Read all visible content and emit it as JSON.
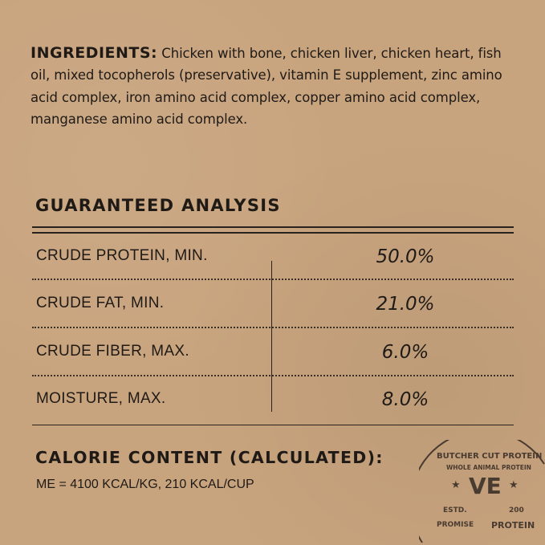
{
  "ingredients": {
    "label": "INGREDIENTS:",
    "text": "Chicken with bone, chicken liver, chicken heart, fish oil, mixed tocopherols (preservative), vitamin E supplement, zinc amino acid complex, iron amino acid complex, copper amino acid complex, manganese amino acid complex."
  },
  "analysis": {
    "title": "GUARANTEED ANALYSIS",
    "rows": [
      {
        "label": "CRUDE PROTEIN, MIN.",
        "value": "50.0%"
      },
      {
        "label": "CRUDE FAT, MIN.",
        "value": "21.0%"
      },
      {
        "label": "CRUDE FIBER, MAX.",
        "value": "6.0%"
      },
      {
        "label": "MOISTURE, MAX.",
        "value": "8.0%"
      }
    ]
  },
  "calorie": {
    "title": "CALORIE CONTENT (CALCULATED):",
    "text": "ME = 4100 KCAL/KG, 210 KCAL/CUP"
  },
  "stamp": {
    "outer": "BUTCHER CUT PROTEIN",
    "inner": "WHOLE ANIMAL PROTEIN",
    "logo": "VE",
    "estd": "ESTD.",
    "year": "200",
    "promise": "PROMISE",
    "right": "PROTEIN"
  },
  "colors": {
    "background": "#c8a47e",
    "ink": "#1f1a16"
  }
}
